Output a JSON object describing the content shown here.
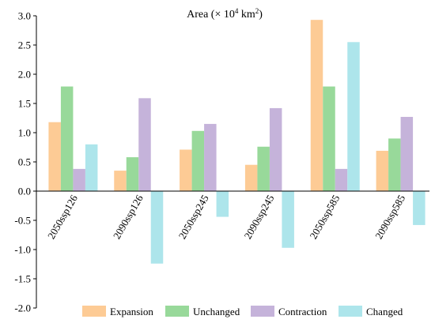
{
  "chart_data": {
    "type": "bar",
    "title_main": "Area (× 10",
    "title_exp": "4",
    "title_mid": " km",
    "title_sup2": "2",
    "title_end": ")",
    "categories": [
      "2050ssp126",
      "2090ssp126",
      "2050ssp245",
      "2090ssp245",
      "2050ssp585",
      "2090ssp585"
    ],
    "series": [
      {
        "name": "Expansion",
        "color": "#FDCB95",
        "values": [
          1.18,
          0.35,
          0.71,
          0.45,
          2.93,
          0.69
        ]
      },
      {
        "name": "Unchanged",
        "color": "#98D99A",
        "values": [
          1.79,
          0.58,
          1.03,
          0.76,
          1.79,
          0.9
        ]
      },
      {
        "name": "Contraction",
        "color": "#C5B3DA",
        "values": [
          0.38,
          1.59,
          1.15,
          1.42,
          0.38,
          1.27
        ]
      },
      {
        "name": "Changed",
        "color": "#ADE5EB",
        "values": [
          0.8,
          -1.24,
          -0.44,
          -0.97,
          2.55,
          -0.58
        ]
      }
    ],
    "ylim": [
      -2.0,
      3.0
    ],
    "yticks": [
      "3.0",
      "2.5",
      "2.0",
      "1.5",
      "1.0",
      "0.5",
      "0.0",
      "-0.5",
      "-1.0",
      "-1.5",
      "-2.0"
    ],
    "grid": false,
    "legend_position": "bottom"
  }
}
